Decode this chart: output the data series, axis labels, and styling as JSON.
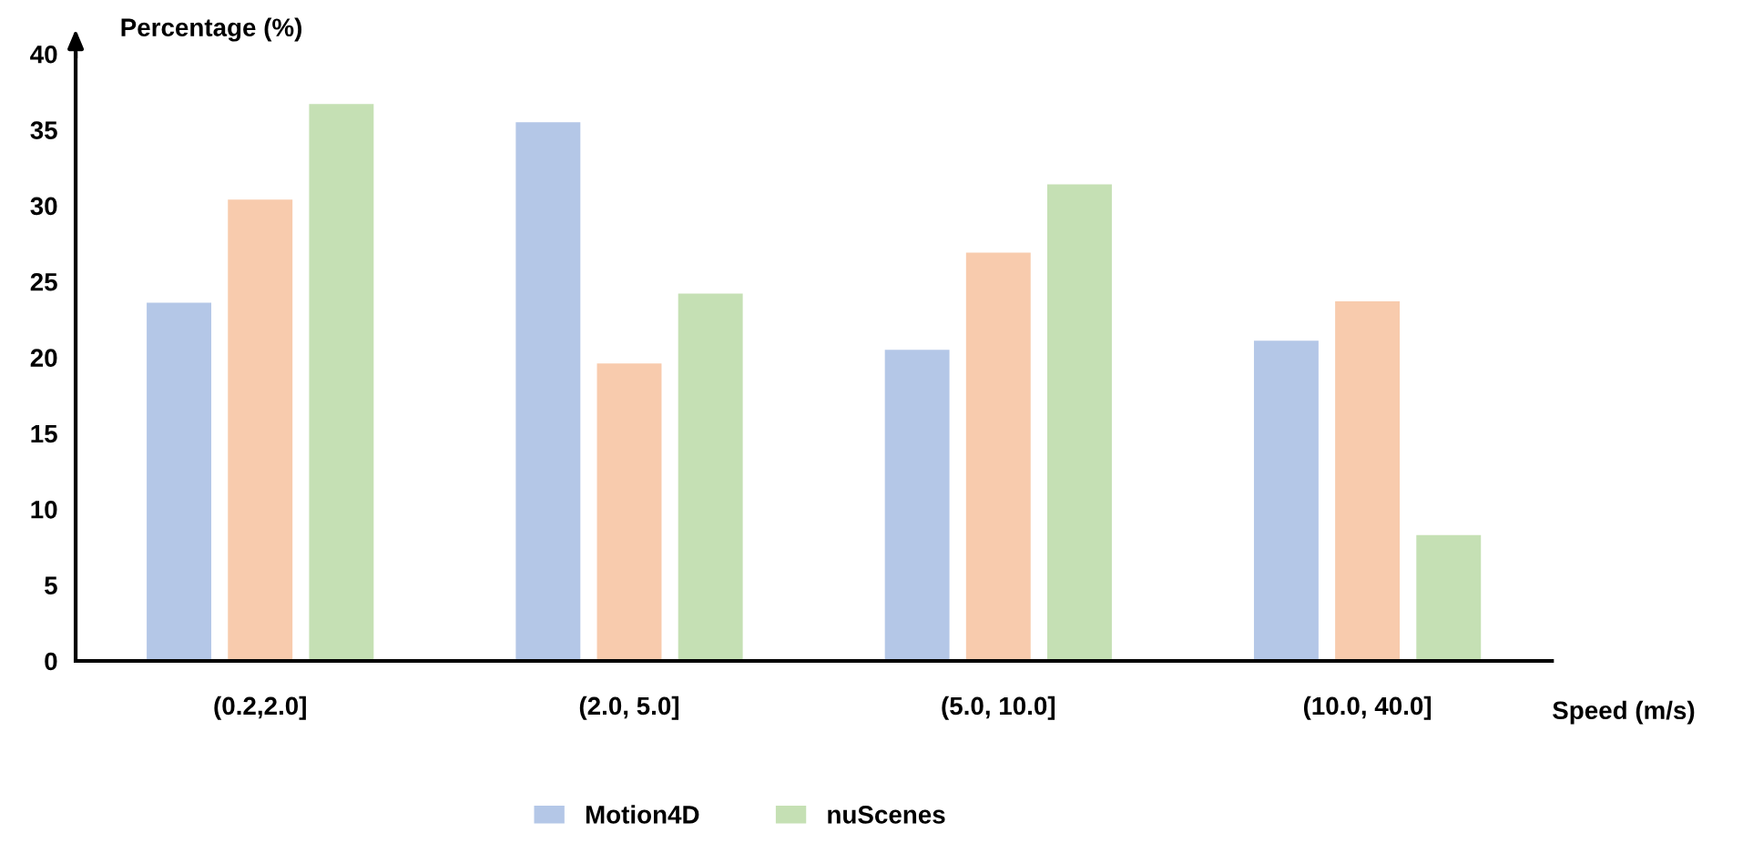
{
  "chart_data": {
    "type": "bar",
    "ylabel": "Percentage (%)",
    "xlabel": "Speed (m/s)",
    "categories": [
      "(0.2,2.0]",
      "(2.0, 5.0]",
      "(5.0, 10.0]",
      "(10.0, 40.0]"
    ],
    "series": [
      {
        "name": "Motion4D",
        "color": "#b4c7e7",
        "values": [
          23.6,
          35.5,
          20.5,
          21.1
        ]
      },
      {
        "color": "#f8cbad",
        "values": [
          30.4,
          19.6,
          26.9,
          23.7
        ]
      },
      {
        "name": "nuScenes",
        "color": "#c5e0b4",
        "values": [
          36.7,
          24.2,
          31.4,
          8.3
        ]
      }
    ],
    "ylim": [
      0,
      40
    ],
    "yticks": [
      0,
      5,
      10,
      15,
      20,
      25,
      30,
      35,
      40
    ],
    "grid": false,
    "legend": "bottom"
  }
}
